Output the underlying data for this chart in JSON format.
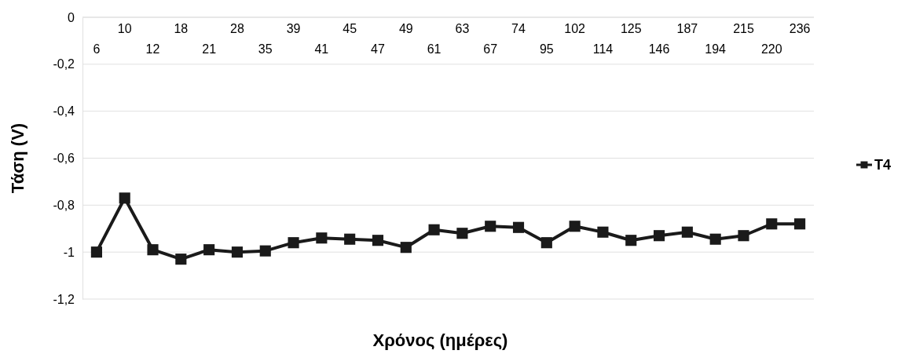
{
  "chart_data": {
    "type": "line",
    "xlabel": "Χρόνος (ημέρες)",
    "ylabel": "Τάση (V)",
    "categories": [
      "6",
      "10",
      "12",
      "18",
      "21",
      "28",
      "35",
      "39",
      "41",
      "45",
      "47",
      "49",
      "61",
      "63",
      "67",
      "74",
      "95",
      "102",
      "114",
      "125",
      "146",
      "187",
      "194",
      "215",
      "220",
      "236"
    ],
    "series": [
      {
        "name": "T4",
        "color": "#1a1a1a",
        "values": [
          -1.0,
          -0.77,
          -0.99,
          -1.03,
          -0.99,
          -1.0,
          -0.995,
          -0.96,
          -0.94,
          -0.945,
          -0.95,
          -0.98,
          -0.905,
          -0.92,
          -0.89,
          -0.895,
          -0.96,
          -0.89,
          -0.915,
          -0.95,
          -0.93,
          -0.915,
          -0.945,
          -0.93,
          -0.88,
          -0.88
        ]
      }
    ],
    "ylim": [
      -1.2,
      0
    ],
    "yticks": [
      {
        "value": -1.2,
        "label": "-1,2"
      },
      -1,
      {
        "value": -0.8,
        "label": "-0,8"
      },
      {
        "value": -0.6,
        "label": "-0,6"
      },
      {
        "value": -0.4,
        "label": "-0,4"
      },
      {
        "value": -0.2,
        "label": "-0,2"
      },
      0
    ],
    "grid": "y",
    "legend": "right",
    "marker": "square",
    "line_style": "solid"
  }
}
